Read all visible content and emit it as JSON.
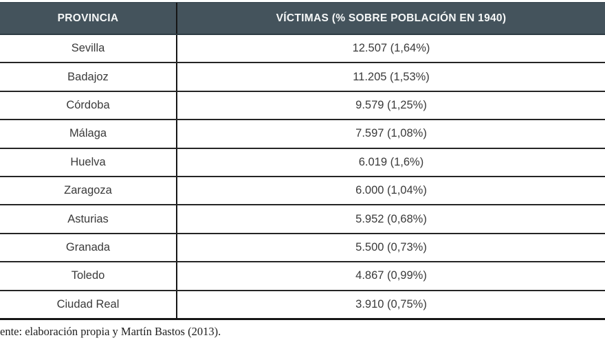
{
  "chart_data": {
    "type": "table",
    "columns": [
      "PROVINCIA",
      "VÍCTIMAS (% SOBRE POBLACIÓN EN 1940)"
    ],
    "rows": [
      {
        "provincia": "Sevilla",
        "victimas": "12.507 (1,64%)"
      },
      {
        "provincia": "Badajoz",
        "victimas": "11.205 (1,53%)"
      },
      {
        "provincia": "Córdoba",
        "victimas": "9.579 (1,25%)"
      },
      {
        "provincia": "Málaga",
        "victimas": "7.597 (1,08%)"
      },
      {
        "provincia": "Huelva",
        "victimas": "6.019 (1,6%)"
      },
      {
        "provincia": "Zaragoza",
        "victimas": "6.000 (1,04%)"
      },
      {
        "provincia": "Asturias",
        "victimas": "5.952 (0,68%)"
      },
      {
        "provincia": "Granada",
        "victimas": "5.500 (0,73%)"
      },
      {
        "provincia": "Toledo",
        "victimas": "4.867 (0,99%)"
      },
      {
        "provincia": "Ciudad Real",
        "victimas": "3.910 (0,75%)"
      }
    ],
    "victims_numeric": [
      12507,
      11205,
      9579,
      7597,
      6019,
      6000,
      5952,
      5500,
      4867,
      3910
    ],
    "percent_of_1940_population": [
      "1,64%",
      "1,53%",
      "1,25%",
      "1,08%",
      "1,6%",
      "1,04%",
      "0,68%",
      "0,73%",
      "0,99%",
      "0,75%"
    ],
    "source_note": "ente: elaboración propia y Martín Bastos (2013)."
  },
  "colors": {
    "header_bg": "#44535c",
    "header_text": "#f6f8f8",
    "row_bg": "#ffffff",
    "border": "#161616",
    "body_text": "#3a3a3a"
  }
}
